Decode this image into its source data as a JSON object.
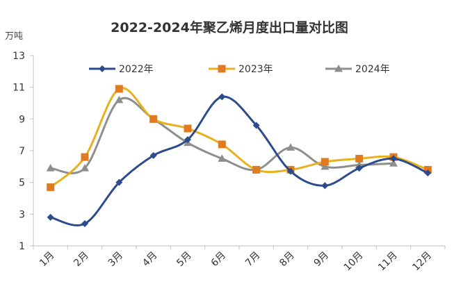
{
  "chart_data": {
    "type": "line",
    "title": "2022-2024年聚乙烯月度出口量对比图",
    "unit_label": "万吨",
    "xlabel": "",
    "ylabel": "",
    "categories": [
      "1月",
      "2月",
      "3月",
      "4月",
      "5月",
      "6月",
      "7月",
      "8月",
      "9月",
      "10月",
      "11月",
      "12月"
    ],
    "y_ticks": [
      1,
      3,
      5,
      7,
      9,
      11,
      13
    ],
    "ylim": [
      1,
      13
    ],
    "grid": false,
    "legend_position": "top",
    "series": [
      {
        "name": "2022年",
        "color": "#2b4b8c",
        "marker": "diamond",
        "values": [
          2.8,
          2.4,
          5.0,
          6.7,
          7.7,
          10.4,
          8.6,
          5.7,
          4.8,
          5.9,
          6.5,
          5.6
        ]
      },
      {
        "name": "2023年",
        "color": "#e07b22",
        "marker": "square",
        "values": [
          4.7,
          6.6,
          10.9,
          9.0,
          8.4,
          7.4,
          5.8,
          5.8,
          6.3,
          6.5,
          6.6,
          5.8
        ]
      },
      {
        "name": "2024年",
        "color": "#8e8e8e",
        "marker": "triangle",
        "values": [
          5.9,
          5.9,
          10.2,
          9.0,
          7.5,
          6.5,
          5.8,
          7.2,
          6.0,
          6.1,
          6.2,
          null
        ]
      }
    ],
    "line_color_2023": "#e8b01c"
  }
}
